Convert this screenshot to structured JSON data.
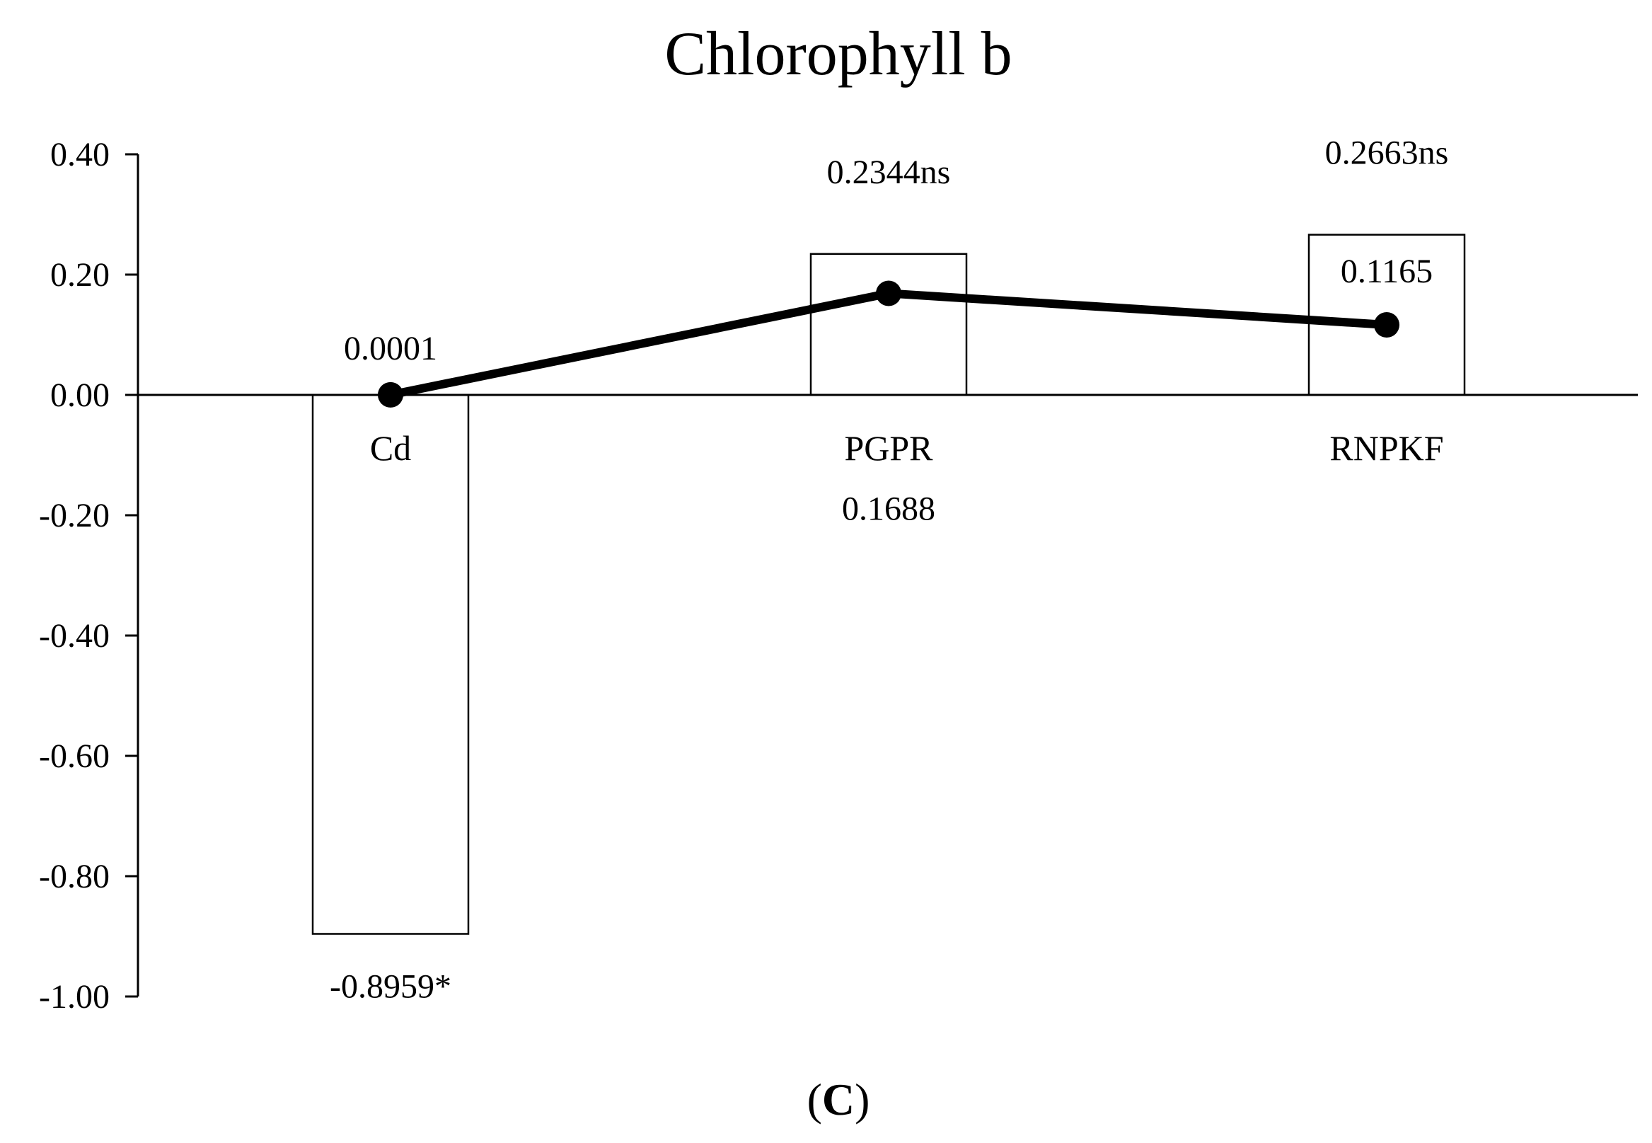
{
  "chart_data": {
    "type": "bar",
    "title": "Chlorophyll  b",
    "xlabel": "",
    "ylabel": "",
    "ylim": [
      -1.0,
      0.4
    ],
    "y_ticks": [
      0.4,
      0.2,
      0.0,
      -0.2,
      -0.4,
      -0.6,
      -0.8,
      -1.0
    ],
    "y_tick_labels": [
      "0.40",
      "0.20",
      "0.00",
      "-0.20",
      "-0.40",
      "-0.60",
      "-0.80",
      "-1.00"
    ],
    "categories": [
      "Cd",
      "PGPR",
      "RNPKF"
    ],
    "legend": "none",
    "grid": false,
    "series": [
      {
        "type": "bar",
        "values": [
          -0.8959,
          0.2344,
          0.2663
        ],
        "labels": [
          "-0.8959*",
          "0.2344ns",
          "0.2663ns"
        ],
        "fill": "#ffffff",
        "stroke": "#000000"
      },
      {
        "type": "line",
        "values": [
          0.0001,
          0.1688,
          0.1165
        ],
        "labels": [
          "0.0001",
          "0.1688",
          "0.1165"
        ],
        "color": "#000000",
        "marker": "circle"
      }
    ]
  },
  "panel_label": {
    "open": "(",
    "letter": "C",
    "close": ")"
  }
}
